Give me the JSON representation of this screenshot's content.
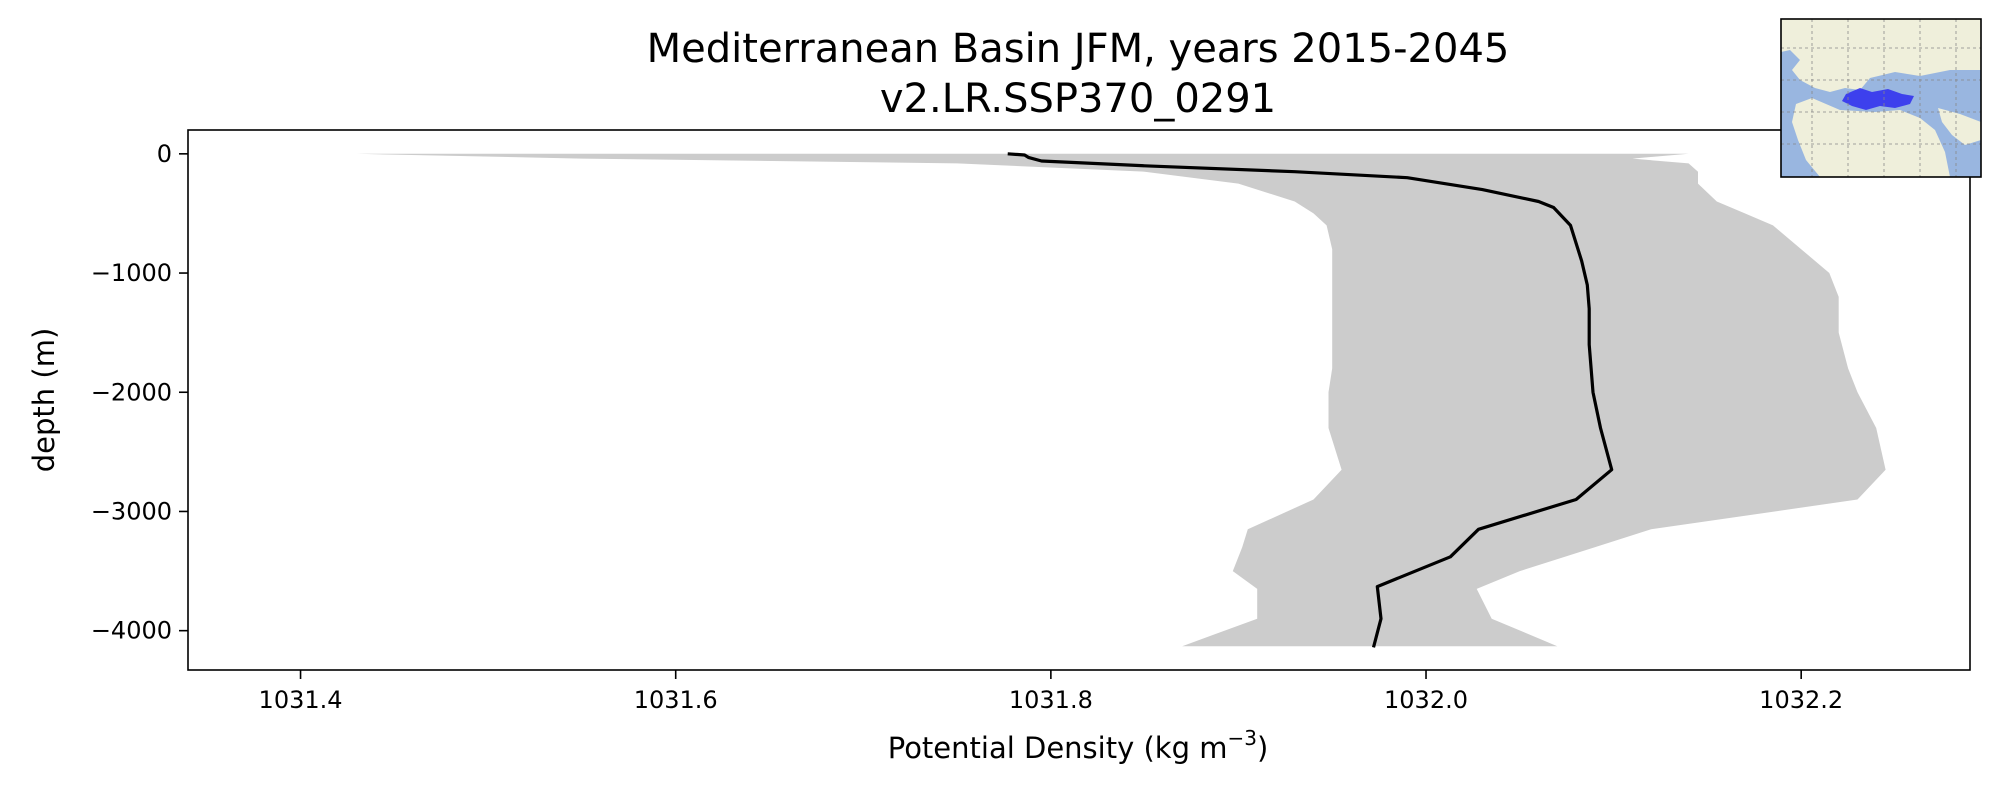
{
  "chart_data": {
    "type": "line",
    "title": "Mediterranean Basin JFM, years 2015-2045",
    "subtitle": "v2.LR.SSP370_0291",
    "xlabel_text": "Potential Density (kg m",
    "xlabel_unit_superscript": "−3",
    "xlabel_close": ")",
    "ylabel": "depth (m)",
    "xlim": [
      1031.34,
      1032.29
    ],
    "ylim": [
      -4330,
      200
    ],
    "x_ticks": [
      1031.4,
      1031.6,
      1031.8,
      1032.0,
      1032.2
    ],
    "x_tick_labels": [
      "1031.4",
      "1031.6",
      "1031.8",
      "1032.0",
      "1032.2"
    ],
    "y_ticks": [
      0,
      -1000,
      -2000,
      -3000,
      -4000
    ],
    "y_tick_labels": [
      "0",
      "−1000",
      "−2000",
      "−3000",
      "−4000"
    ],
    "grid": false,
    "colors": {
      "mean_line": "#000000",
      "range_fill": "#cccccc",
      "axes": "#000000"
    },
    "mean_profile": {
      "depth": [
        0,
        -10,
        -30,
        -60,
        -100,
        -150,
        -200,
        -300,
        -400,
        -450,
        -600,
        -900,
        -1100,
        -1300,
        -1600,
        -1800,
        -2000,
        -2300,
        -2650,
        -2900,
        -3150,
        -3380,
        -3630,
        -3900,
        -4140
      ],
      "density": [
        1031.777,
        1031.786,
        1031.788,
        1031.795,
        1031.85,
        1031.93,
        1031.99,
        1032.03,
        1032.06,
        1032.068,
        1032.077,
        1032.083,
        1032.086,
        1032.087,
        1032.087,
        1032.088,
        1032.089,
        1032.093,
        1032.099,
        1032.08,
        1032.028,
        1032.013,
        1031.974,
        1031.976,
        1031.972
      ]
    },
    "range_envelope": {
      "depth": [
        0,
        -40,
        -80,
        -150,
        -250,
        -400,
        -500,
        -600,
        -800,
        -1000,
        -1200,
        -1500,
        -1800,
        -2000,
        -2300,
        -2650,
        -2900,
        -3150,
        -3300,
        -3500,
        -3650,
        -3900,
        -4130
      ],
      "min_density": [
        1031.43,
        1031.55,
        1031.75,
        1031.85,
        1031.9,
        1031.93,
        1031.94,
        1031.947,
        1031.95,
        1031.95,
        1031.95,
        1031.95,
        1031.95,
        1031.948,
        1031.948,
        1031.955,
        1031.94,
        1031.905,
        1031.902,
        1031.897,
        1031.91,
        1031.91,
        1031.87
      ],
      "max_density": [
        1032.14,
        1032.11,
        1032.14,
        1032.145,
        1032.145,
        1032.155,
        1032.17,
        1032.185,
        1032.2,
        1032.215,
        1032.22,
        1032.22,
        1032.225,
        1032.23,
        1032.24,
        1032.245,
        1032.23,
        1032.12,
        1032.09,
        1032.05,
        1032.027,
        1032.035,
        1032.07
      ]
    },
    "inset_map": {
      "region_highlight_color": "#3333ee",
      "ocean_color": "#99b6e0",
      "land_color": "#efefdb"
    }
  }
}
